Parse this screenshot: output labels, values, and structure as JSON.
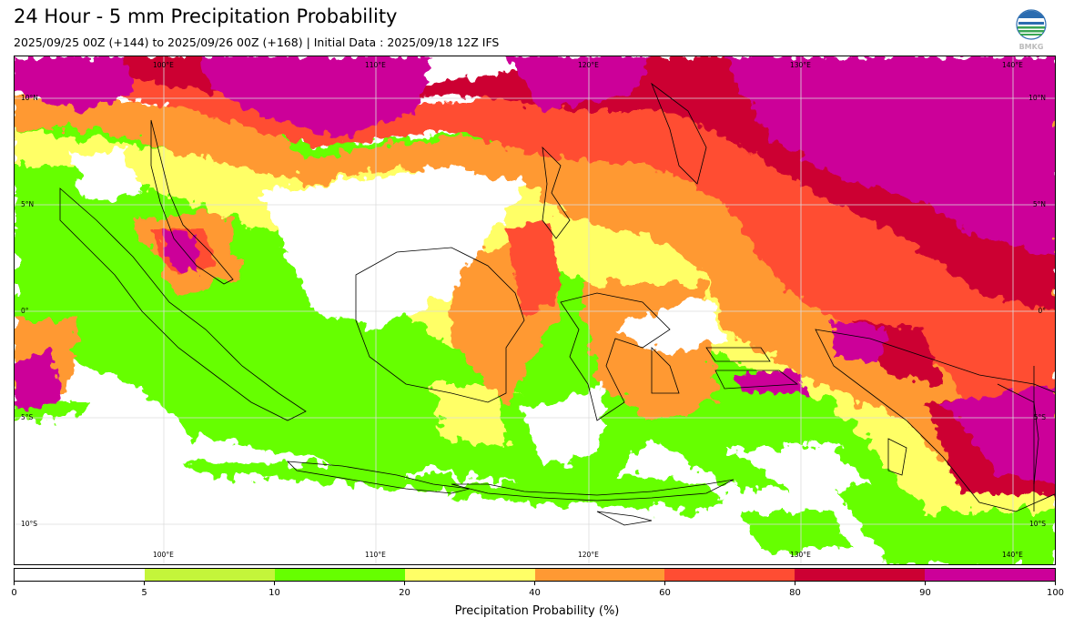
{
  "title": "24 Hour - 5 mm Precipitation Probability",
  "subtitle": "2025/09/25 00Z (+144) to 2025/09/26 00Z (+168) | Initial Data : 2025/09/18 12Z IFS",
  "logo_text": "BMKG",
  "map": {
    "lon_labels": [
      "100°E",
      "110°E",
      "120°E",
      "130°E",
      "140°E"
    ],
    "lat_labels": [
      "10°N",
      "5°N",
      "0°",
      "5°S",
      "10°S"
    ]
  },
  "colorbar": {
    "label": "Precipitation Probability (%)",
    "ticks": [
      "0",
      "5",
      "10",
      "20",
      "40",
      "60",
      "80",
      "90",
      "100"
    ],
    "colors": [
      "#ffffff",
      "#c4f53a",
      "#66ff00",
      "#ffff66",
      "#ff9933",
      "#ff4d33",
      "#cc0033",
      "#cc0099"
    ]
  }
}
